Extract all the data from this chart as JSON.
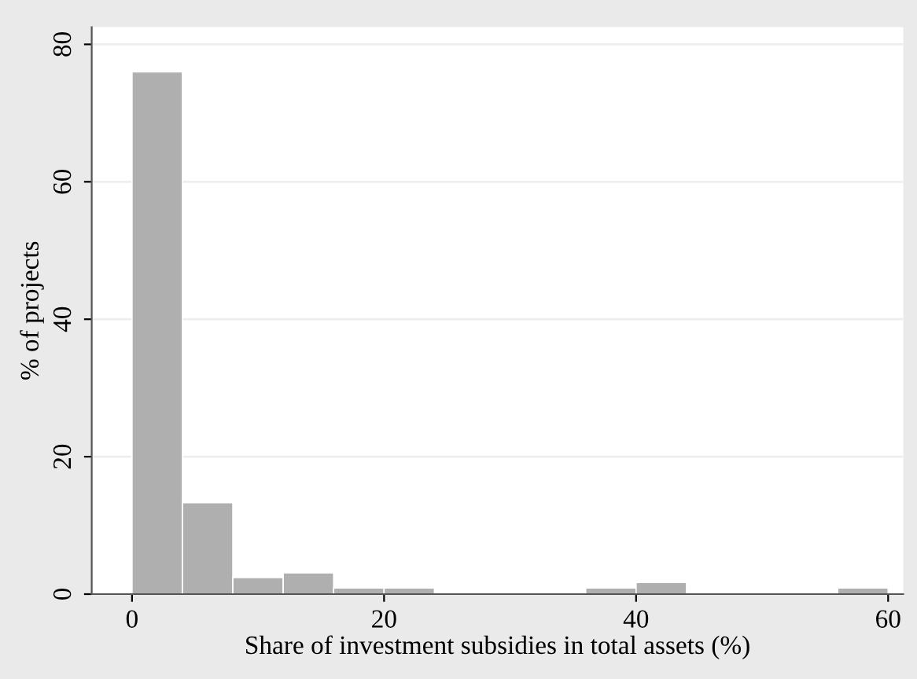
{
  "chart_data": {
    "type": "histogram",
    "xlabel": "Share of investment subsidies in total assets (%)",
    "ylabel": "% of projects",
    "bins": [
      0,
      4,
      8,
      12,
      16,
      20,
      24,
      28,
      32,
      36,
      40,
      44,
      48,
      52,
      56,
      60
    ],
    "values": [
      76,
      13.3,
      2.4,
      3.1,
      0.9,
      0.9,
      0,
      0,
      0,
      0.9,
      1.7,
      0,
      0,
      0,
      0.9
    ],
    "color": "#afafaf",
    "xlim": [
      -3.2,
      61.2
    ],
    "ylim": [
      0,
      82.5
    ],
    "xticks": [
      0,
      20,
      40,
      60
    ],
    "yticks": [
      0,
      20,
      40,
      60,
      80
    ],
    "grid": "y"
  }
}
